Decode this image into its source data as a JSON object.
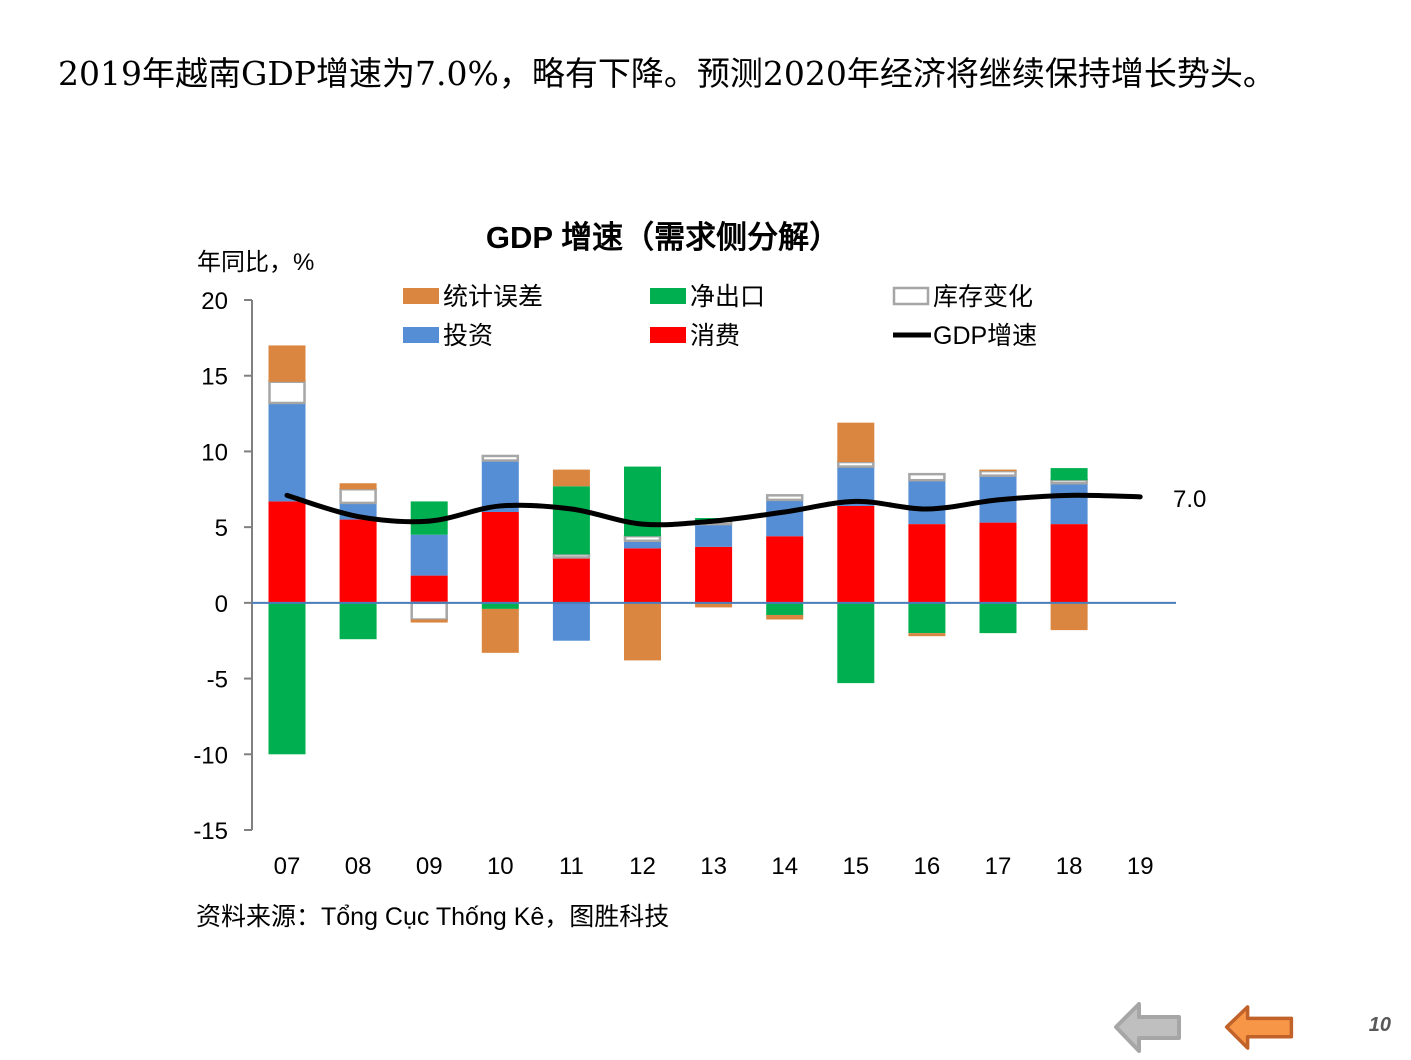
{
  "headline": "2019年越南GDP增速为7.0%，略有下降。预测2020年经济将继续保持增长势头。",
  "chart_data": {
    "type": "bar",
    "stacked": true,
    "title": "GDP 增速（需求侧分解）",
    "ylabel": "年同比，%",
    "xlabel": "",
    "ylim": [
      -15,
      20
    ],
    "yticks": [
      20,
      15,
      10,
      5,
      0,
      -5,
      -10,
      -15
    ],
    "grid": false,
    "legend_position": "top",
    "categories": [
      "07",
      "08",
      "09",
      "10",
      "11",
      "12",
      "13",
      "14",
      "15",
      "16",
      "17",
      "18",
      "19"
    ],
    "series": [
      {
        "name": "消费",
        "key": "consumption",
        "kind": "bar",
        "color": "#FF0000",
        "values": [
          6.7,
          5.5,
          1.8,
          6.0,
          3.0,
          3.6,
          3.7,
          4.4,
          6.4,
          5.2,
          5.3,
          5.2,
          null
        ]
      },
      {
        "name": "投资",
        "key": "investment",
        "kind": "bar",
        "color": "#558ED5",
        "values": [
          6.5,
          1.1,
          2.7,
          3.4,
          -2.5,
          0.5,
          1.5,
          2.4,
          2.6,
          2.9,
          3.1,
          2.7,
          null
        ]
      },
      {
        "name": "库存变化",
        "key": "inventory",
        "kind": "bar-outline",
        "color": "#A6A6A6",
        "values": [
          1.4,
          0.9,
          -1.1,
          0.3,
          0.2,
          0.3,
          0.2,
          0.3,
          0.3,
          0.4,
          0.3,
          0.2,
          null
        ]
      },
      {
        "name": "净出口",
        "key": "net_exports",
        "kind": "bar",
        "color": "#00B050",
        "values": [
          -10.0,
          -2.4,
          2.2,
          -0.4,
          4.5,
          4.6,
          0.2,
          -0.8,
          -5.3,
          -2.0,
          -2.0,
          0.8,
          null
        ]
      },
      {
        "name": "统计误差",
        "key": "stat_error",
        "kind": "bar",
        "color": "#DA8640",
        "values": [
          2.4,
          0.4,
          -0.2,
          -2.9,
          1.1,
          -3.8,
          -0.3,
          -0.3,
          2.6,
          -0.2,
          0.1,
          -1.8,
          null
        ]
      },
      {
        "name": "GDP增速",
        "key": "gdp_growth",
        "kind": "line",
        "color": "#000000",
        "values": [
          7.1,
          5.7,
          5.4,
          6.4,
          6.2,
          5.2,
          5.4,
          6.0,
          6.7,
          6.2,
          6.8,
          7.1,
          7.0
        ]
      }
    ],
    "legend_order": [
      "统计误差",
      "净出口",
      "库存变化",
      "投资",
      "消费",
      "GDP增速"
    ],
    "annotations": [
      {
        "text": "7.0",
        "category": "19",
        "series": "GDP增速"
      }
    ],
    "zero_line_color": "#4A7EBB",
    "axis_color": "#808080"
  },
  "source_note": "资料来源：Tổng Cục Thống Kê，图胜科技",
  "nav": {
    "back_icon": "back-arrow-gray",
    "prev_icon": "back-arrow-orange",
    "back_color": "#A6A6A6",
    "prev_color": "#F79646"
  },
  "page_number": "10"
}
